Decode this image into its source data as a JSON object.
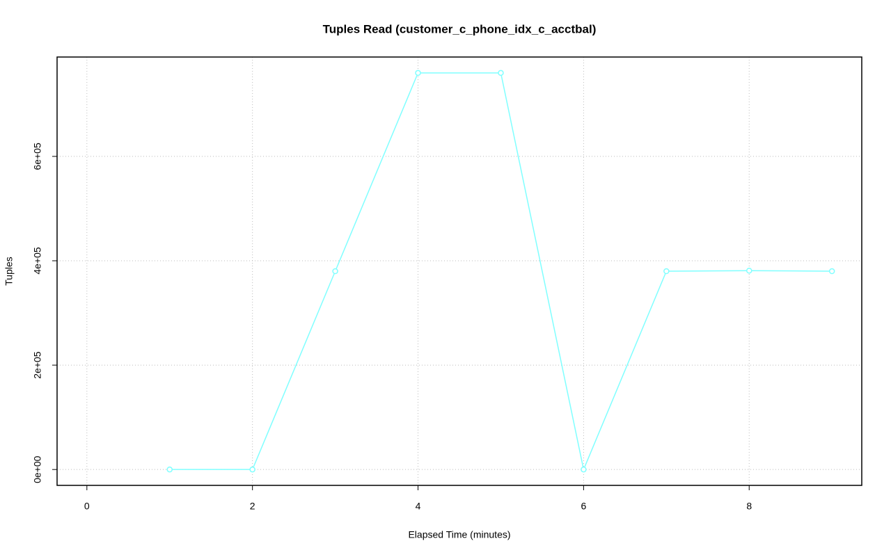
{
  "chart_data": {
    "type": "line",
    "title": "Tuples Read (customer_c_phone_idx_c_acctbal)",
    "x_label": "Elapsed Time (minutes)",
    "y_label": "Tuples",
    "x": [
      1,
      2,
      3,
      4,
      5,
      6,
      7,
      8,
      9
    ],
    "series": [
      {
        "color": "#80ffff",
        "values": [
          0,
          0,
          380000,
          760000,
          760000,
          0,
          380000,
          381000,
          380000
        ]
      }
    ],
    "xlim": [
      -0.36,
      9.36
    ],
    "xticks": [
      0,
      2,
      4,
      6,
      8
    ],
    "ylim": [
      -30400,
      790400
    ],
    "yticks": [
      {
        "value": 0,
        "label": "0e+00"
      },
      {
        "value": 200000,
        "label": "2e+05"
      },
      {
        "value": 400000,
        "label": "4e+05"
      },
      {
        "value": 600000,
        "label": "6e+05"
      }
    ],
    "grid": true
  }
}
